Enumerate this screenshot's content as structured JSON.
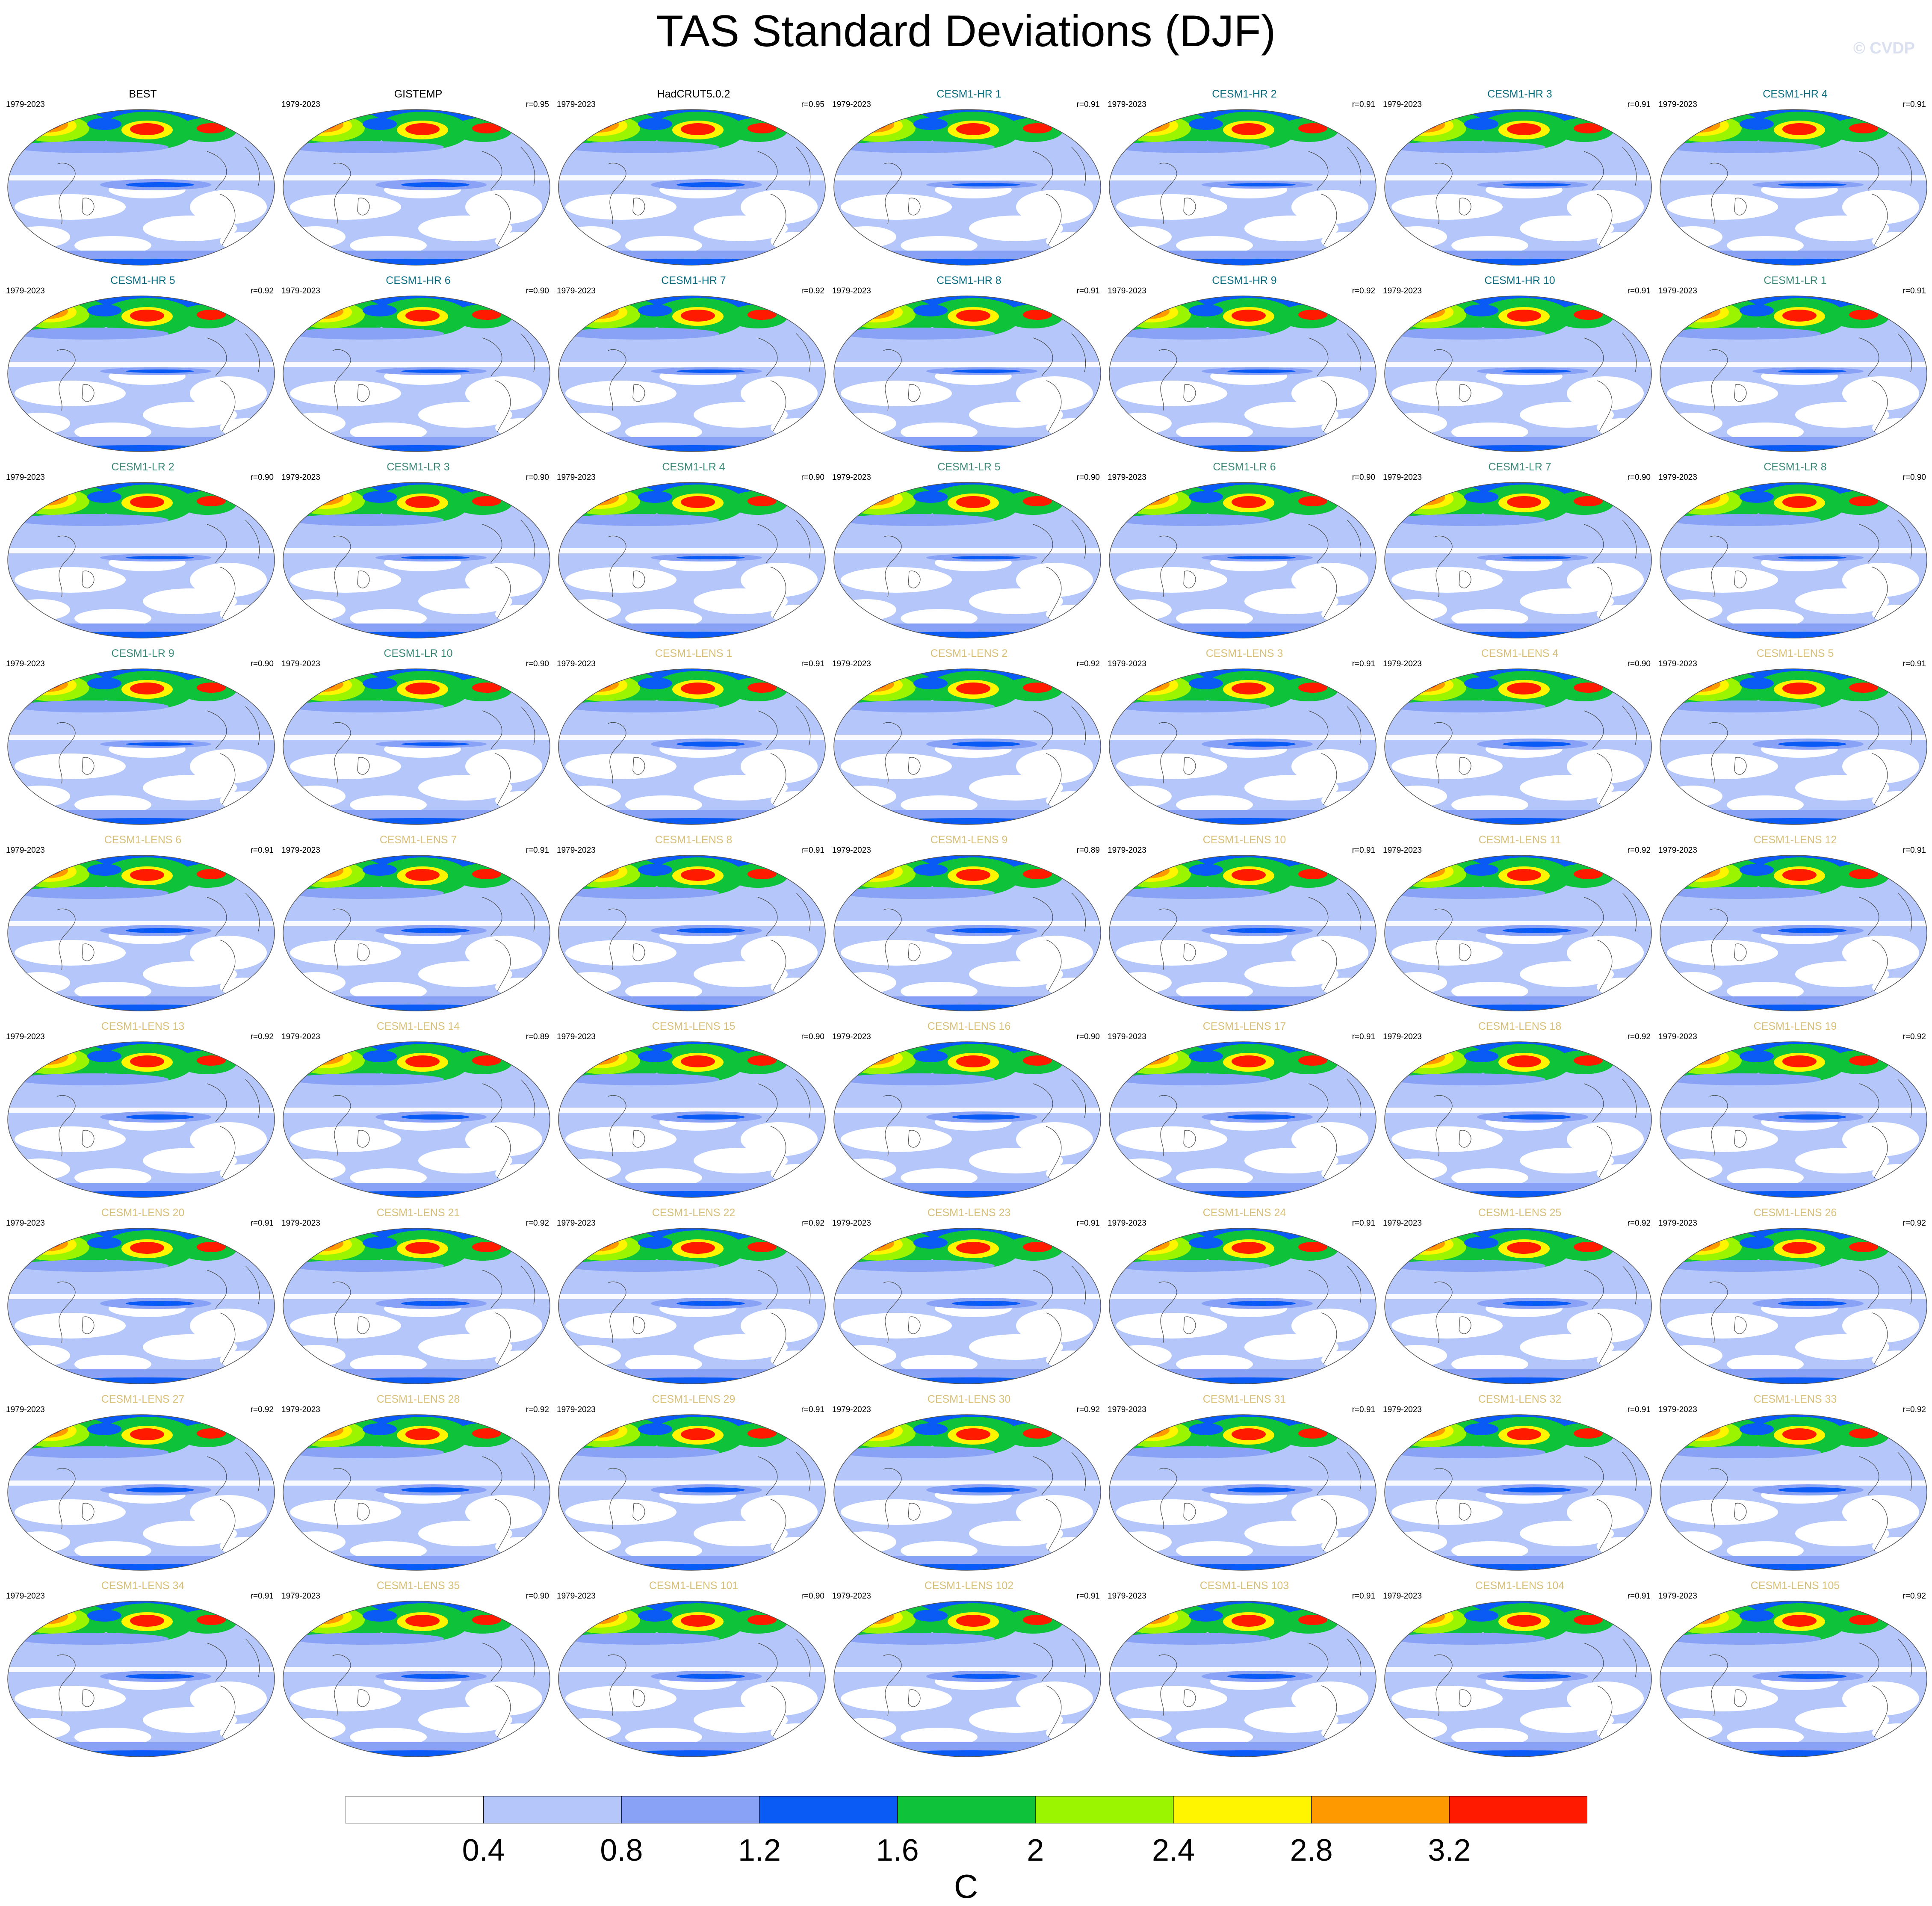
{
  "title": "TAS Standard Deviations (DJF)",
  "credit": "© CVDP",
  "period": "1979-2023",
  "colors": {
    "obs_title": "#000000",
    "hr_title": "#0e6f82",
    "lr_title": "#3d8a78",
    "lens_title": "#d8c07a",
    "coast": "#4a4a4a"
  },
  "panels": [
    {
      "name": "BEST",
      "r": "",
      "group": "obs"
    },
    {
      "name": "GISTEMP",
      "r": "r=0.95",
      "group": "obs"
    },
    {
      "name": "HadCRUT5.0.2",
      "r": "r=0.95",
      "group": "obs"
    },
    {
      "name": "CESM1-HR 1",
      "r": "r=0.91",
      "group": "hr"
    },
    {
      "name": "CESM1-HR 2",
      "r": "r=0.91",
      "group": "hr"
    },
    {
      "name": "CESM1-HR 3",
      "r": "r=0.91",
      "group": "hr"
    },
    {
      "name": "CESM1-HR 4",
      "r": "r=0.91",
      "group": "hr"
    },
    {
      "name": "CESM1-HR 5",
      "r": "r=0.92",
      "group": "hr"
    },
    {
      "name": "CESM1-HR 6",
      "r": "r=0.90",
      "group": "hr"
    },
    {
      "name": "CESM1-HR 7",
      "r": "r=0.92",
      "group": "hr"
    },
    {
      "name": "CESM1-HR 8",
      "r": "r=0.91",
      "group": "hr"
    },
    {
      "name": "CESM1-HR 9",
      "r": "r=0.92",
      "group": "hr"
    },
    {
      "name": "CESM1-HR 10",
      "r": "r=0.91",
      "group": "hr"
    },
    {
      "name": "CESM1-LR 1",
      "r": "r=0.91",
      "group": "lr"
    },
    {
      "name": "CESM1-LR 2",
      "r": "r=0.90",
      "group": "lr"
    },
    {
      "name": "CESM1-LR 3",
      "r": "r=0.90",
      "group": "lr"
    },
    {
      "name": "CESM1-LR 4",
      "r": "r=0.90",
      "group": "lr"
    },
    {
      "name": "CESM1-LR 5",
      "r": "r=0.90",
      "group": "lr"
    },
    {
      "name": "CESM1-LR 6",
      "r": "r=0.90",
      "group": "lr"
    },
    {
      "name": "CESM1-LR 7",
      "r": "r=0.90",
      "group": "lr"
    },
    {
      "name": "CESM1-LR 8",
      "r": "r=0.90",
      "group": "lr"
    },
    {
      "name": "CESM1-LR 9",
      "r": "r=0.90",
      "group": "lr"
    },
    {
      "name": "CESM1-LR 10",
      "r": "r=0.90",
      "group": "lr"
    },
    {
      "name": "CESM1-LENS 1",
      "r": "r=0.91",
      "group": "lens"
    },
    {
      "name": "CESM1-LENS 2",
      "r": "r=0.92",
      "group": "lens"
    },
    {
      "name": "CESM1-LENS 3",
      "r": "r=0.91",
      "group": "lens"
    },
    {
      "name": "CESM1-LENS 4",
      "r": "r=0.90",
      "group": "lens"
    },
    {
      "name": "CESM1-LENS 5",
      "r": "r=0.91",
      "group": "lens"
    },
    {
      "name": "CESM1-LENS 6",
      "r": "r=0.91",
      "group": "lens"
    },
    {
      "name": "CESM1-LENS 7",
      "r": "r=0.91",
      "group": "lens"
    },
    {
      "name": "CESM1-LENS 8",
      "r": "r=0.91",
      "group": "lens"
    },
    {
      "name": "CESM1-LENS 9",
      "r": "r=0.89",
      "group": "lens"
    },
    {
      "name": "CESM1-LENS 10",
      "r": "r=0.91",
      "group": "lens"
    },
    {
      "name": "CESM1-LENS 11",
      "r": "r=0.92",
      "group": "lens"
    },
    {
      "name": "CESM1-LENS 12",
      "r": "r=0.91",
      "group": "lens"
    },
    {
      "name": "CESM1-LENS 13",
      "r": "r=0.92",
      "group": "lens"
    },
    {
      "name": "CESM1-LENS 14",
      "r": "r=0.89",
      "group": "lens"
    },
    {
      "name": "CESM1-LENS 15",
      "r": "r=0.90",
      "group": "lens"
    },
    {
      "name": "CESM1-LENS 16",
      "r": "r=0.90",
      "group": "lens"
    },
    {
      "name": "CESM1-LENS 17",
      "r": "r=0.91",
      "group": "lens"
    },
    {
      "name": "CESM1-LENS 18",
      "r": "r=0.92",
      "group": "lens"
    },
    {
      "name": "CESM1-LENS 19",
      "r": "r=0.92",
      "group": "lens"
    },
    {
      "name": "CESM1-LENS 20",
      "r": "r=0.91",
      "group": "lens"
    },
    {
      "name": "CESM1-LENS 21",
      "r": "r=0.92",
      "group": "lens"
    },
    {
      "name": "CESM1-LENS 22",
      "r": "r=0.92",
      "group": "lens"
    },
    {
      "name": "CESM1-LENS 23",
      "r": "r=0.91",
      "group": "lens"
    },
    {
      "name": "CESM1-LENS 24",
      "r": "r=0.91",
      "group": "lens"
    },
    {
      "name": "CESM1-LENS 25",
      "r": "r=0.92",
      "group": "lens"
    },
    {
      "name": "CESM1-LENS 26",
      "r": "r=0.92",
      "group": "lens"
    },
    {
      "name": "CESM1-LENS 27",
      "r": "r=0.92",
      "group": "lens"
    },
    {
      "name": "CESM1-LENS 28",
      "r": "r=0.92",
      "group": "lens"
    },
    {
      "name": "CESM1-LENS 29",
      "r": "r=0.91",
      "group": "lens"
    },
    {
      "name": "CESM1-LENS 30",
      "r": "r=0.92",
      "group": "lens"
    },
    {
      "name": "CESM1-LENS 31",
      "r": "r=0.91",
      "group": "lens"
    },
    {
      "name": "CESM1-LENS 32",
      "r": "r=0.91",
      "group": "lens"
    },
    {
      "name": "CESM1-LENS 33",
      "r": "r=0.92",
      "group": "lens"
    },
    {
      "name": "CESM1-LENS 34",
      "r": "r=0.91",
      "group": "lens"
    },
    {
      "name": "CESM1-LENS 35",
      "r": "r=0.90",
      "group": "lens"
    },
    {
      "name": "CESM1-LENS 101",
      "r": "r=0.90",
      "group": "lens"
    },
    {
      "name": "CESM1-LENS 102",
      "r": "r=0.91",
      "group": "lens"
    },
    {
      "name": "CESM1-LENS 103",
      "r": "r=0.91",
      "group": "lens"
    },
    {
      "name": "CESM1-LENS 104",
      "r": "r=0.91",
      "group": "lens"
    },
    {
      "name": "CESM1-LENS 105",
      "r": "r=0.92",
      "group": "lens"
    }
  ],
  "colorbar": {
    "units": "C",
    "levels": [
      "0.4",
      "0.8",
      "1.2",
      "1.6",
      "2",
      "2.4",
      "2.8",
      "3.2"
    ],
    "colors": [
      "#ffffff",
      "#b4c6fa",
      "#8aa2f6",
      "#0a5af5",
      "#0ec23a",
      "#9cf500",
      "#fff500",
      "#ff9900",
      "#ff1a00"
    ]
  }
}
